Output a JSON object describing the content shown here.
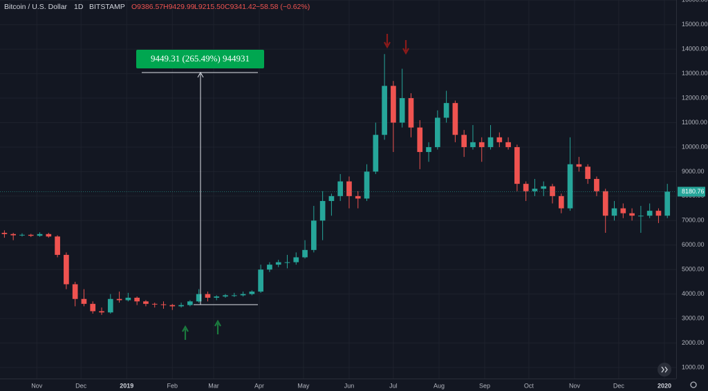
{
  "header": {
    "symbol": "Bitcoin / U.S. Dollar",
    "interval": "1D",
    "exchange": "BITSTAMP",
    "ohlc": [
      "O9386.57",
      "H9429.99",
      "L9215.50",
      "C9341.42"
    ],
    "change": "−58.58 (−0.62%)"
  },
  "measure_label": "9449.31 (265.49%) 944931",
  "chart_data": {
    "type": "candlestick",
    "x": [
      3,
      9,
      15,
      21,
      27,
      33,
      39,
      45,
      51,
      57,
      63,
      69,
      75,
      81,
      87,
      93,
      99,
      105,
      111,
      117,
      123,
      129,
      135,
      141,
      147,
      153,
      159,
      165,
      171,
      177,
      183,
      189,
      195,
      201,
      207,
      213,
      219,
      225,
      231,
      237,
      243,
      249,
      255,
      261,
      267,
      273,
      279,
      285,
      291,
      297,
      303,
      309,
      315,
      321,
      327,
      333,
      339,
      345,
      351,
      357,
      363,
      369,
      375,
      381,
      387,
      393,
      399,
      405,
      411,
      417,
      423,
      429,
      435,
      441,
      447,
      453
    ],
    "open": [
      6500,
      6450,
      6400,
      6420,
      6380,
      6450,
      6350,
      5600,
      4400,
      3800,
      3600,
      3300,
      3250,
      3800,
      3750,
      3850,
      3700,
      3600,
      3580,
      3550,
      3500,
      3550,
      3700,
      4000,
      3850,
      3900,
      3950,
      3950,
      4000,
      4100,
      5000,
      5200,
      5300,
      5300,
      5500,
      5800,
      7000,
      7800,
      8000,
      8600,
      8000,
      7900,
      9000,
      10500,
      12500,
      11000,
      12000,
      10800,
      9800,
      10000,
      11200,
      11800,
      10500,
      10000,
      10200,
      10000,
      10400,
      10200,
      10000,
      8500,
      8200,
      8300,
      8400,
      8000,
      7500,
      9300,
      9200,
      8700,
      8200,
      7200,
      7500,
      7300,
      7200,
      7200,
      7400,
      7200
    ],
    "high": [
      6600,
      6500,
      6480,
      6460,
      6520,
      6500,
      6400,
      5700,
      4500,
      4200,
      3700,
      3450,
      4000,
      4100,
      4050,
      3900,
      3750,
      3650,
      3700,
      3600,
      3650,
      3750,
      4200,
      4100,
      3950,
      4000,
      4050,
      4100,
      4150,
      5200,
      5300,
      5400,
      5600,
      5700,
      6200,
      7600,
      8200,
      8100,
      8900,
      8800,
      8200,
      9300,
      11000,
      13800,
      12700,
      13200,
      12200,
      11100,
      10200,
      11500,
      12300,
      11900,
      10700,
      10900,
      10400,
      10900,
      10600,
      10400,
      10100,
      8600,
      8700,
      8600,
      8500,
      8100,
      10400,
      9600,
      9300,
      8800,
      8300,
      7800,
      7700,
      7500,
      7600,
      7700,
      7500,
      8500
    ],
    "low": [
      6300,
      6200,
      6350,
      6330,
      6340,
      6300,
      5500,
      4200,
      3500,
      3500,
      3200,
      3150,
      3200,
      3650,
      3700,
      3550,
      3500,
      3450,
      3400,
      3350,
      3450,
      3500,
      3650,
      3700,
      3750,
      3850,
      3880,
      3900,
      3950,
      4050,
      4900,
      5100,
      5050,
      5200,
      5450,
      5700,
      6200,
      7200,
      7800,
      7500,
      7500,
      7800,
      8900,
      10300,
      9800,
      10800,
      10400,
      9100,
      9400,
      9900,
      11000,
      10200,
      9600,
      9900,
      9400,
      9900,
      10000,
      9900,
      8200,
      7800,
      8000,
      8000,
      7700,
      7300,
      7400,
      9000,
      8500,
      8000,
      6500,
      7000,
      7100,
      7000,
      6500,
      7100,
      6900,
      7100
    ],
    "close": [
      6450,
      6400,
      6420,
      6380,
      6450,
      6350,
      5600,
      4400,
      3800,
      3600,
      3300,
      3250,
      3800,
      3750,
      3850,
      3700,
      3600,
      3580,
      3550,
      3500,
      3550,
      3700,
      4000,
      3850,
      3900,
      3950,
      3950,
      4000,
      4100,
      5000,
      5200,
      5300,
      5300,
      5500,
      5800,
      7000,
      7800,
      8000,
      8600,
      8000,
      7900,
      9000,
      10500,
      12500,
      11000,
      12000,
      10800,
      9800,
      10000,
      11200,
      11800,
      10500,
      10000,
      10200,
      10000,
      10400,
      10200,
      10000,
      8500,
      8200,
      8300,
      8400,
      8000,
      7500,
      9300,
      9200,
      8700,
      8200,
      7200,
      7500,
      7300,
      7200,
      7200,
      7400,
      7200,
      8180.76
    ],
    "up_color": "#26a69a",
    "down_color": "#ef5350",
    "last_price": 8180.76,
    "xlim": [
      0,
      459
    ],
    "xticks": [
      {
        "value": 25,
        "label": "Nov"
      },
      {
        "value": 55,
        "label": "Dec"
      },
      {
        "value": 86,
        "label": "2019"
      },
      {
        "value": 117,
        "label": "Feb"
      },
      {
        "value": 145,
        "label": "Mar"
      },
      {
        "value": 176,
        "label": "Apr"
      },
      {
        "value": 206,
        "label": "May"
      },
      {
        "value": 237,
        "label": "Jun"
      },
      {
        "value": 267,
        "label": "Jul"
      },
      {
        "value": 298,
        "label": "Aug"
      },
      {
        "value": 329,
        "label": "Sep"
      },
      {
        "value": 359,
        "label": "Oct"
      },
      {
        "value": 390,
        "label": "Nov"
      },
      {
        "value": 420,
        "label": "Dec"
      },
      {
        "value": 451,
        "label": "2020"
      }
    ],
    "ylim": [
      549,
      16007
    ],
    "yticks": [
      {
        "value": 1000,
        "label": "1000.00"
      },
      {
        "value": 2000,
        "label": "2000.00"
      },
      {
        "value": 3000,
        "label": "3000.00"
      },
      {
        "value": 4000,
        "label": "4000.00"
      },
      {
        "value": 5000,
        "label": "5000.00"
      },
      {
        "value": 6000,
        "label": "6000.00"
      },
      {
        "value": 7000,
        "label": "7000.00"
      },
      {
        "value": 8000,
        "label": "8000.00"
      },
      {
        "value": 9000,
        "label": "9000.00"
      },
      {
        "value": 10000,
        "label": "10000.00"
      },
      {
        "value": 11000,
        "label": "11000.00"
      },
      {
        "value": 12000,
        "label": "12000.00"
      },
      {
        "value": 13000,
        "label": "13000.00"
      },
      {
        "value": 14000,
        "label": "14000.00"
      },
      {
        "value": 15000,
        "label": "15000.00"
      },
      {
        "value": 16000,
        "label": "16000.00"
      }
    ],
    "grid": true
  }
}
